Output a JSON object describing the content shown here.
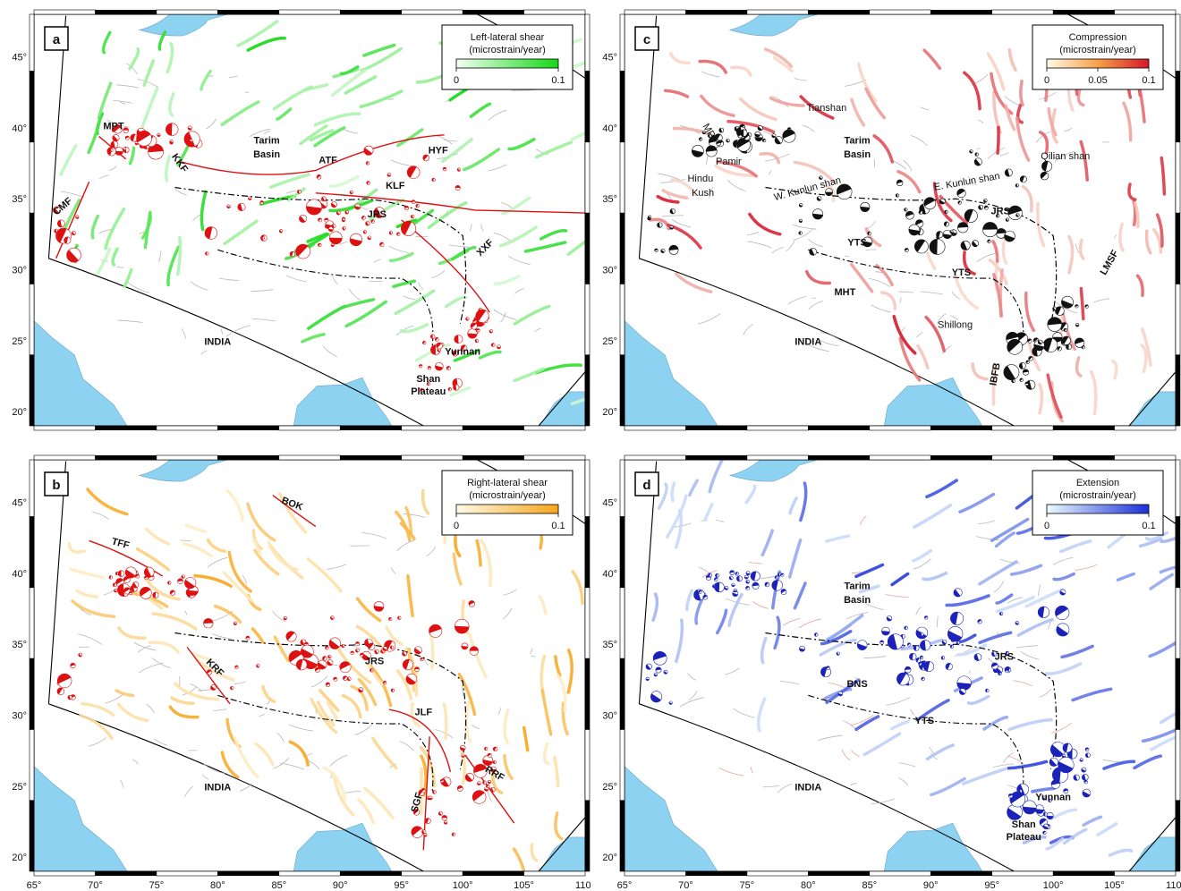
{
  "panels": [
    {
      "id": "a",
      "legend": {
        "title_line1": "Left-lateral shear",
        "title_line2": "(microstrain/year)",
        "ticks": [
          "0",
          "0.1"
        ],
        "color_low": "#f2fff2",
        "color_high": "#14d814"
      },
      "strain_color": "#22dd22",
      "mechanism_color": "#dd1111",
      "labels": [
        {
          "text": "MPT",
          "lon": 71.5,
          "lat": 39.9,
          "bold": true
        },
        {
          "text": "KKF",
          "lon": 76.7,
          "lat": 37.4,
          "bold": true,
          "rot": 55
        },
        {
          "text": "Tarim",
          "lon": 84.0,
          "lat": 38.9,
          "bold": true
        },
        {
          "text": "Basin",
          "lon": 84.0,
          "lat": 37.9,
          "bold": true
        },
        {
          "text": "ATF",
          "lon": 89.0,
          "lat": 37.5,
          "bold": true
        },
        {
          "text": "HYF",
          "lon": 98.0,
          "lat": 38.2,
          "bold": true
        },
        {
          "text": "KLF",
          "lon": 94.5,
          "lat": 35.7,
          "bold": true
        },
        {
          "text": "CMF",
          "lon": 67.5,
          "lat": 34.3,
          "bold": true,
          "rot": -40
        },
        {
          "text": "JRS",
          "lon": 93.0,
          "lat": 33.7,
          "bold": true
        },
        {
          "text": "XXF",
          "lon": 102.0,
          "lat": 31.4,
          "bold": true,
          "rot": -45
        },
        {
          "text": "INDIA",
          "lon": 80.0,
          "lat": 24.7,
          "bold": true
        },
        {
          "text": "Yunnan",
          "lon": 100.0,
          "lat": 24.0,
          "bold": true
        },
        {
          "text": "Shan",
          "lon": 97.2,
          "lat": 22.1,
          "bold": true
        },
        {
          "text": "Plateau",
          "lon": 97.2,
          "lat": 21.2,
          "bold": true
        }
      ]
    },
    {
      "id": "b",
      "legend": {
        "title_line1": "Right-lateral shear",
        "title_line2": "(microstrain/year)",
        "ticks": [
          "0",
          "0.1"
        ],
        "color_low": "#fffbe8",
        "color_high": "#f7a51b"
      },
      "strain_color": "#f5b820",
      "mechanism_color": "#dd1111",
      "labels": [
        {
          "text": "BOK",
          "lon": 86.0,
          "lat": 44.7,
          "bold": true,
          "rot": 20
        },
        {
          "text": "TFF",
          "lon": 72.0,
          "lat": 41.9,
          "bold": true,
          "rot": 15
        },
        {
          "text": "KRF",
          "lon": 79.6,
          "lat": 33.2,
          "bold": true,
          "rot": 45
        },
        {
          "text": "JRS",
          "lon": 92.8,
          "lat": 33.6,
          "bold": true
        },
        {
          "text": "JLF",
          "lon": 96.8,
          "lat": 30.0,
          "bold": true
        },
        {
          "text": "SGF",
          "lon": 96.5,
          "lat": 23.8,
          "bold": true,
          "rot": -75
        },
        {
          "text": "RRF",
          "lon": 102.5,
          "lat": 25.7,
          "bold": true,
          "rot": 30
        },
        {
          "text": "INDIA",
          "lon": 80.0,
          "lat": 24.7,
          "bold": true
        }
      ]
    },
    {
      "id": "c",
      "legend": {
        "title_line1": "Compression",
        "title_line2": "(microstrain/year)",
        "ticks": [
          "0",
          "0.05",
          "0.1"
        ],
        "color_low": "#fffbe8",
        "color_high": "#d4162a"
      },
      "strain_color": "#ec5a2c",
      "mechanism_color": "#111111",
      "labels": [
        {
          "text": "MPT",
          "lon": 71.8,
          "lat": 39.5,
          "bold": false,
          "rot": 60
        },
        {
          "text": "Tianshan",
          "lon": 81.5,
          "lat": 41.2,
          "bold": false
        },
        {
          "text": "Pamir",
          "lon": 73.5,
          "lat": 37.4,
          "bold": false
        },
        {
          "text": "Hindu",
          "lon": 71.2,
          "lat": 36.2,
          "bold": false
        },
        {
          "text": "Kush",
          "lon": 71.4,
          "lat": 35.2,
          "bold": false
        },
        {
          "text": "W. Kunlun shan",
          "lon": 80.0,
          "lat": 35.5,
          "bold": false,
          "rot": -15
        },
        {
          "text": "Tarim",
          "lon": 84.0,
          "lat": 38.9,
          "bold": true
        },
        {
          "text": "Basin",
          "lon": 84.0,
          "lat": 37.9,
          "bold": true
        },
        {
          "text": "E. Kunlun shan",
          "lon": 93.0,
          "lat": 36.0,
          "bold": false,
          "rot": -10
        },
        {
          "text": "Qilian shan",
          "lon": 101.0,
          "lat": 37.8,
          "bold": false
        },
        {
          "text": "JRS",
          "lon": 95.7,
          "lat": 33.9,
          "bold": true
        },
        {
          "text": "YTS",
          "lon": 84.0,
          "lat": 31.7,
          "bold": true
        },
        {
          "text": "YTS",
          "lon": 92.5,
          "lat": 29.6,
          "bold": true
        },
        {
          "text": "MHT",
          "lon": 83.0,
          "lat": 28.2,
          "bold": true
        },
        {
          "text": "LMSF",
          "lon": 104.8,
          "lat": 30.4,
          "bold": true,
          "rot": -60
        },
        {
          "text": "Shillong",
          "lon": 92.0,
          "lat": 25.9,
          "bold": false
        },
        {
          "text": "IBFB",
          "lon": 95.5,
          "lat": 22.6,
          "bold": true,
          "rot": -80
        },
        {
          "text": "INDIA",
          "lon": 80.0,
          "lat": 24.7,
          "bold": true
        }
      ]
    },
    {
      "id": "d",
      "legend": {
        "title_line1": "Extension",
        "title_line2": "(microstrain/year)",
        "ticks": [
          "0",
          "0.1"
        ],
        "color_low": "#ecfcff",
        "color_high": "#1a2fd8"
      },
      "strain_color": "#5ecdf0",
      "mechanism_color": "#1a22b8",
      "labels": [
        {
          "text": "Tarim",
          "lon": 84.0,
          "lat": 38.9,
          "bold": true
        },
        {
          "text": "Basin",
          "lon": 84.0,
          "lat": 37.9,
          "bold": true
        },
        {
          "text": "JRS",
          "lon": 96.0,
          "lat": 33.9,
          "bold": true
        },
        {
          "text": "BNS",
          "lon": 84.0,
          "lat": 32.0,
          "bold": true
        },
        {
          "text": "YTS",
          "lon": 89.5,
          "lat": 29.4,
          "bold": true
        },
        {
          "text": "INDIA",
          "lon": 80.0,
          "lat": 24.7,
          "bold": true
        },
        {
          "text": "Yunnan",
          "lon": 100.0,
          "lat": 24.0,
          "bold": true
        },
        {
          "text": "Shan",
          "lon": 97.6,
          "lat": 22.1,
          "bold": true
        },
        {
          "text": "Plateau",
          "lon": 97.6,
          "lat": 21.2,
          "bold": true
        }
      ]
    }
  ],
  "lat_ticks": [
    "45°",
    "40°",
    "35°",
    "30°",
    "25°",
    "20°"
  ],
  "lat_values": [
    45,
    40,
    35,
    30,
    25,
    20
  ],
  "lon_ticks": [
    "65°",
    "70°",
    "75°",
    "80°",
    "85°",
    "90°",
    "95°",
    "100°",
    "105°",
    "110°"
  ],
  "lon_values": [
    65,
    70,
    75,
    80,
    85,
    90,
    95,
    100,
    105,
    110
  ],
  "lon_range": [
    65,
    110
  ],
  "lat_range": [
    19,
    48
  ],
  "colors": {
    "water": "#8ed2f2",
    "frame": "#000000",
    "fault_trace": "#b8b8b8",
    "boundary": "#000000"
  }
}
